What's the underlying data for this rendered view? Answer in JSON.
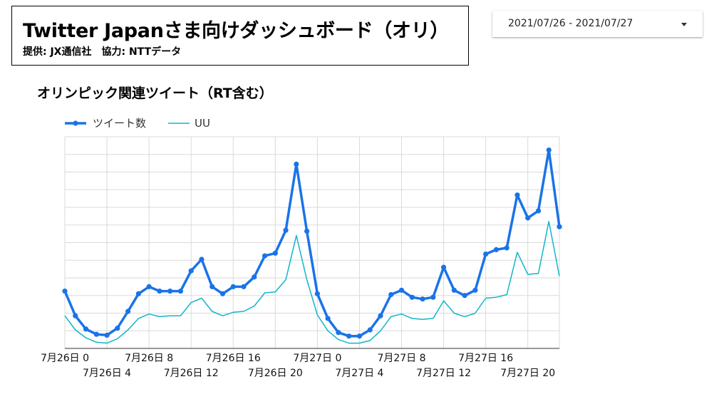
{
  "header": {
    "title": "Twitter Japanさま向けダッシュボード（オリ）",
    "credit": "提供: JX通信社　協力: NTTデータ"
  },
  "date_picker": {
    "range": "2021/07/26 - 2021/07/27"
  },
  "chart_data": {
    "type": "line",
    "title": "オリンピック関連ツイート（RT含む）",
    "xlabel": "",
    "ylabel": "",
    "x": [
      "7月26日 0",
      "7月26日 1",
      "7月26日 2",
      "7月26日 3",
      "7月26日 4",
      "7月26日 5",
      "7月26日 6",
      "7月26日 7",
      "7月26日 8",
      "7月26日 9",
      "7月26日 10",
      "7月26日 11",
      "7月26日 12",
      "7月26日 13",
      "7月26日 14",
      "7月26日 15",
      "7月26日 16",
      "7月26日 17",
      "7月26日 18",
      "7月26日 19",
      "7月26日 20",
      "7月26日 21",
      "7月26日 22",
      "7月26日 23",
      "7月27日 0",
      "7月27日 1",
      "7月27日 2",
      "7月27日 3",
      "7月27日 4",
      "7月27日 5",
      "7月27日 6",
      "7月27日 7",
      "7月27日 8",
      "7月27日 9",
      "7月27日 10",
      "7月27日 11",
      "7月27日 12",
      "7月27日 13",
      "7月27日 14",
      "7月27日 15",
      "7月27日 16",
      "7月27日 17",
      "7月27日 18",
      "7월27日 19",
      "7月27日 20",
      "7月27日 21",
      "7月27日 22",
      "7月27日 23"
    ],
    "tick_labels": [
      "7月26日 0",
      "7月26日 4",
      "7月26日 8",
      "7月26日 12",
      "7月26日 16",
      "7月26日 20",
      "7月27日 0",
      "7月27日 4",
      "7月27日 8",
      "7月27日 12",
      "7月27日 16",
      "7月27日 20"
    ],
    "series": [
      {
        "name": "ツイート数",
        "color": "#1a73e8",
        "values": [
          32.5,
          18.5,
          11,
          8,
          7.5,
          11.5,
          21,
          31,
          35,
          32.5,
          32.5,
          32.5,
          44,
          50.5,
          35,
          31,
          35,
          35,
          40.5,
          52.5,
          54,
          67,
          104.5,
          66.5,
          31,
          17,
          9,
          7,
          7,
          10.5,
          18.5,
          30.5,
          33,
          29,
          28,
          29,
          46,
          33,
          30,
          33,
          53.5,
          56,
          57,
          87,
          74,
          78,
          112.5,
          69
        ]
      },
      {
        "name": "UU",
        "color": "#12b5cb",
        "values": [
          18.5,
          10.5,
          6,
          3.5,
          3,
          5.5,
          10.5,
          17,
          19.5,
          18,
          18.5,
          18.5,
          26,
          28.5,
          21,
          18.5,
          20.5,
          21,
          24,
          31.5,
          32,
          39,
          64,
          39,
          19,
          10,
          5,
          3,
          3,
          4.5,
          10,
          18,
          19.5,
          17,
          16.5,
          17,
          27,
          20,
          18,
          20,
          28.5,
          29,
          30.5,
          54.5,
          42,
          42.5,
          72,
          41
        ]
      }
    ],
    "ylim": [
      0,
      120
    ],
    "grid": true,
    "legend": "top-left"
  }
}
